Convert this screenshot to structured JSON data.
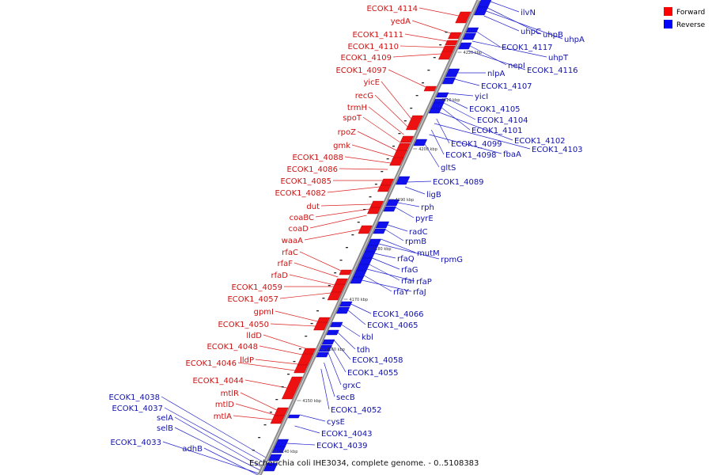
{
  "title": "Escherichia coli IHE3034, complete genome. - 0..5108383",
  "legend": [
    {
      "label": "Forward",
      "color": "#ff0000"
    },
    {
      "label": "Reverse",
      "color": "#0000ff"
    }
  ],
  "colors": {
    "forward": "#ee1111",
    "reverse": "#1111ee",
    "backbone": "#888888"
  },
  "ticks": [
    "4140 kbp",
    "4150 kbp",
    "4160 kbp",
    "4170 kbp",
    "4180 kbp",
    "4190 kbp",
    "4200 kbp",
    "4210 kbp",
    "4220 kbp"
  ],
  "forward_labels": [
    "ECOK1_4114",
    "yedA",
    "ECOK1_4111",
    "ECOK1_4110",
    "ECOK1_4109",
    "ECOK1_4097",
    "yicE",
    "recG",
    "trmH",
    "spoT",
    "rpoZ",
    "gmk",
    "ECOK1_4088",
    "ECOK1_4086",
    "ECOK1_4085",
    "ECOK1_4082",
    "dut",
    "coaBC",
    "coaD",
    "waaA",
    "rfaC",
    "rfaF",
    "rfaD",
    "ECOK1_4059",
    "ECOK1_4057",
    "gpmI",
    "ECOK1_4050",
    "lldD",
    "ECOK1_4048",
    "lldP",
    "ECOK1_4046",
    "ECOK1_4044",
    "mtlR",
    "mtlD",
    "mtlA"
  ],
  "reverse_left_labels": [
    "ECOK1_4038",
    "ECOK1_4037",
    "selA",
    "selB",
    "ECOK1_4033",
    "adhB"
  ],
  "reverse_labels": [
    "ilvN",
    "uhpB",
    "uhpA",
    "uhpC",
    "ECOK1_4117",
    "uhpT",
    "nepI",
    "ECOK1_4116",
    "nlpA",
    "ECOK1_4107",
    "yicI",
    "ECOK1_4105",
    "ECOK1_4104",
    "ECOK1_4101",
    "ECOK1_4102",
    "ECOK1_4099",
    "ECOK1_4103",
    "ECOK1_4098",
    "fbaA",
    "gltS",
    "ECOK1_4089",
    "ligB",
    "rph",
    "pyrE",
    "radC",
    "rpmB",
    "mutM",
    "rpmG",
    "rfaQ",
    "rfaG",
    "rfaI",
    "rfaP",
    "rfaY",
    "rfaJ",
    "ECOK1_4066",
    "ECOK1_4065",
    "kbl",
    "tdh",
    "ECOK1_4058",
    "ECOK1_4055",
    "grxC",
    "secB",
    "ECOK1_4052",
    "cysE",
    "ECOK1_4043",
    "ECOK1_4039"
  ]
}
